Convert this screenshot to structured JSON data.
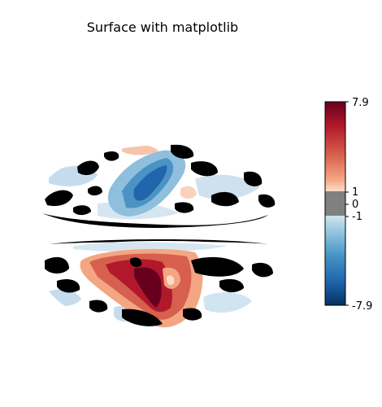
{
  "title": "Surface with matplotlib",
  "colorbar": {
    "colormap": "RdBu_r",
    "threshold_color": "#808080",
    "ticks": [
      "7.9",
      "1",
      "0",
      "-1",
      "-7.9"
    ],
    "top_color": "#67001f",
    "bottom_color": "#053061"
  },
  "views": [
    "dorsal",
    "ventral"
  ]
}
